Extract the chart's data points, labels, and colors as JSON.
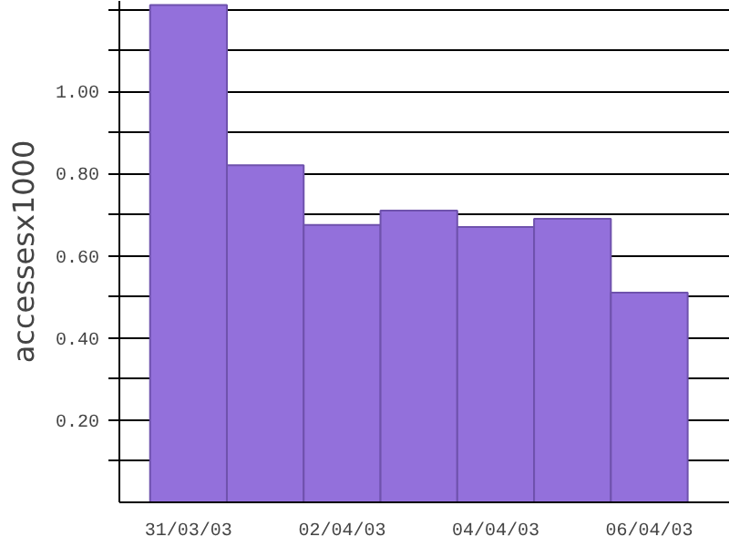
{
  "chart_data": {
    "type": "bar",
    "ylabel": "accessesx1000",
    "categories": [
      "31/03/03",
      null,
      "02/04/03",
      null,
      "04/04/03",
      null,
      "06/04/03"
    ],
    "values": [
      1.21,
      0.82,
      0.675,
      0.71,
      0.67,
      0.69,
      0.51
    ],
    "color": "#9370db",
    "ylim": [
      0,
      1.22
    ],
    "yticks": [
      {
        "value": 0.1,
        "label": null
      },
      {
        "value": 0.2,
        "label": "0.20"
      },
      {
        "value": 0.3,
        "label": null
      },
      {
        "value": 0.4,
        "label": "0.40"
      },
      {
        "value": 0.5,
        "label": null
      },
      {
        "value": 0.6,
        "label": "0.60"
      },
      {
        "value": 0.7,
        "label": null
      },
      {
        "value": 0.8,
        "label": "0.80"
      },
      {
        "value": 0.9,
        "label": null
      },
      {
        "value": 1.0,
        "label": "1.00"
      },
      {
        "value": 1.1,
        "label": null
      },
      {
        "value": 1.2,
        "label": null
      }
    ],
    "grid": "y"
  }
}
